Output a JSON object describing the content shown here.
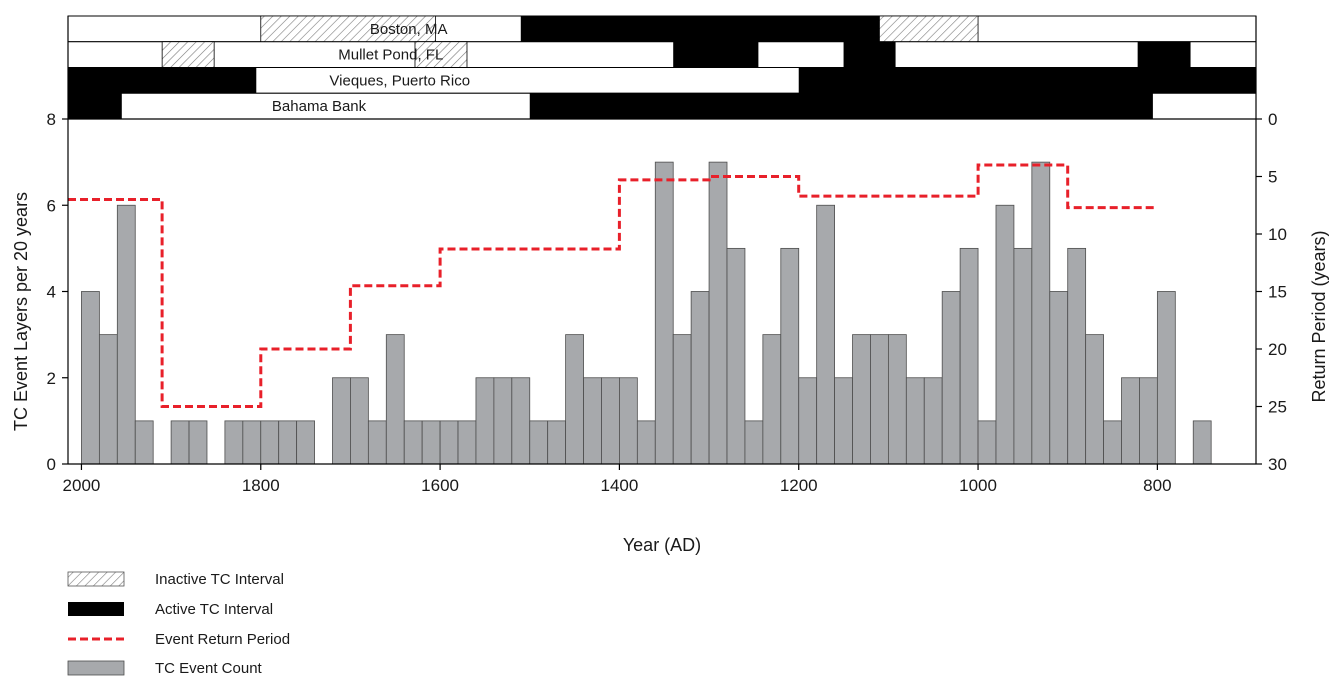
{
  "chart_data": {
    "type": "bar",
    "xlabel": "Year (AD)",
    "ylabel": "TC Event Layers per 20 years",
    "y2label": "Return Period (years)",
    "xlim": [
      2015,
      690
    ],
    "ylim": [
      0,
      8
    ],
    "y2lim": [
      0,
      30
    ],
    "x_ticks": [
      2000,
      1800,
      1600,
      1400,
      1200,
      1000,
      800
    ],
    "y_ticks": [
      0,
      2,
      4,
      6,
      8
    ],
    "y2_ticks": [
      0,
      5,
      10,
      15,
      20,
      25,
      30
    ],
    "bar_width_years": 20,
    "bar_color": "#a7a9ac",
    "return_color": "#e8202a",
    "bars": {
      "name": "TC Event Count",
      "x": [
        1990,
        1970,
        1950,
        1930,
        1890,
        1870,
        1830,
        1810,
        1790,
        1770,
        1750,
        1710,
        1690,
        1670,
        1650,
        1630,
        1610,
        1590,
        1570,
        1550,
        1530,
        1510,
        1490,
        1470,
        1450,
        1430,
        1410,
        1390,
        1370,
        1350,
        1330,
        1310,
        1290,
        1270,
        1250,
        1230,
        1210,
        1190,
        1170,
        1150,
        1130,
        1110,
        1090,
        1070,
        1050,
        1030,
        1010,
        990,
        970,
        950,
        930,
        910,
        890,
        870,
        850,
        830,
        810,
        790,
        750
      ],
      "values": [
        4,
        3,
        6,
        1,
        1,
        1,
        1,
        1,
        1,
        1,
        1,
        2,
        2,
        1,
        3,
        1,
        1,
        1,
        1,
        2,
        2,
        2,
        1,
        1,
        3,
        2,
        2,
        2,
        1,
        7,
        3,
        4,
        7,
        5,
        1,
        3,
        5,
        2,
        6,
        2,
        3,
        3,
        3,
        2,
        2,
        4,
        5,
        1,
        6,
        5,
        7,
        4,
        5,
        3,
        1,
        2,
        2,
        4,
        1
      ]
    },
    "return_period": {
      "name": "Event Return Period",
      "steps": [
        {
          "from": 2015,
          "to": 1910,
          "value": 7
        },
        {
          "from": 1910,
          "to": 1800,
          "value": 25
        },
        {
          "from": 1800,
          "to": 1700,
          "value": 20
        },
        {
          "from": 1700,
          "to": 1600,
          "value": 14.5
        },
        {
          "from": 1600,
          "to": 1400,
          "value": 11.3
        },
        {
          "from": 1400,
          "to": 1300,
          "value": 5.3
        },
        {
          "from": 1300,
          "to": 1200,
          "value": 5
        },
        {
          "from": 1200,
          "to": 1000,
          "value": 6.7
        },
        {
          "from": 1000,
          "to": 900,
          "value": 4
        },
        {
          "from": 900,
          "to": 800,
          "value": 7.7
        }
      ]
    },
    "tracks": [
      {
        "name": "Boston, MA",
        "label_x": 1635,
        "active": [
          [
            1510,
            1110
          ]
        ],
        "inactive": [
          [
            1800,
            1605
          ],
          [
            1110,
            1000
          ]
        ]
      },
      {
        "name": "Mullet Pond, FL",
        "label_x": 1655,
        "active": [
          [
            1340,
            1245
          ],
          [
            1150,
            1092
          ],
          [
            822,
            763
          ]
        ],
        "inactive": [
          [
            1910,
            1852
          ],
          [
            1628,
            1570
          ]
        ]
      },
      {
        "name": "Vieques, Puerto Rico",
        "label_x": 1645,
        "active": [
          [
            2015,
            1805
          ],
          [
            1200,
            690
          ]
        ],
        "inactive": []
      },
      {
        "name": "Bahama Bank",
        "label_x": 1735,
        "active": [
          [
            2015,
            1955
          ],
          [
            1500,
            805
          ]
        ],
        "inactive": []
      }
    ],
    "legend": [
      {
        "key": "inactive",
        "label": "Inactive TC Interval"
      },
      {
        "key": "active",
        "label": "Active TC Interval"
      },
      {
        "key": "return",
        "label": "Event Return Period"
      },
      {
        "key": "bar",
        "label": "TC Event Count"
      }
    ]
  }
}
